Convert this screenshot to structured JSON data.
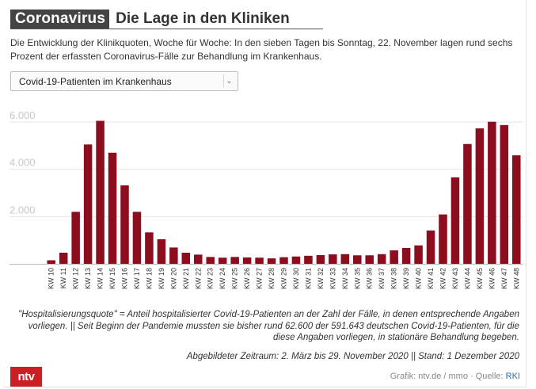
{
  "header": {
    "badge": "Coronavirus",
    "title": "Die Lage in den Kliniken",
    "subtitle": "Die Entwicklung der Klinikquoten, Woche für Woche: In den sieben Tagen bis Sonntag, 22. November lagen rund sechs Prozent der erfassten Coronavirus-Fälle zur Behandlung im Krankenhaus."
  },
  "selector": {
    "selected": "Covid-19-Patienten im Krankenhaus"
  },
  "chart_data": {
    "type": "bar",
    "categories": [
      "KW 10",
      "KW 11",
      "KW 12",
      "KW 13",
      "KW 14",
      "KW 15",
      "KW 16",
      "KW 17",
      "KW 18",
      "KW 19",
      "KW 20",
      "KW 21",
      "KW 22",
      "KW 23",
      "KW 24",
      "KW 25",
      "KW 26",
      "KW 27",
      "KW 28",
      "KW 29",
      "KW 30",
      "KW 31",
      "KW 32",
      "KW 33",
      "KW 34",
      "KW 35",
      "KW 36",
      "KW 37",
      "KW 38",
      "KW 39",
      "KW 40",
      "KW 41",
      "KW 42",
      "KW 43",
      "KW 44",
      "KW 45",
      "KW 46",
      "KW 47",
      "KW 48"
    ],
    "values": [
      150,
      470,
      2200,
      5050,
      6050,
      4700,
      3320,
      2200,
      1330,
      1040,
      690,
      470,
      390,
      290,
      260,
      290,
      270,
      260,
      230,
      280,
      310,
      340,
      370,
      400,
      410,
      360,
      360,
      410,
      570,
      670,
      780,
      1410,
      2090,
      3660,
      5070,
      5730,
      6010,
      5870,
      4590
    ],
    "yticks": [
      "2.000",
      "4.000",
      "6.000"
    ],
    "ytick_values": [
      2000,
      4000,
      6000
    ],
    "ylim": [
      0,
      6600
    ],
    "grid": true,
    "bar_color": "#8b0d1e",
    "title": "",
    "xlabel": "",
    "ylabel": ""
  },
  "notes": {
    "definition": "\"Hospitalisierungsquote\" = Anteil hospitalisierter Covid-19-Patienten an der Zahl der Fälle, in denen entsprechende Angaben vorliegen. || Seit Beginn der Pandemie mussten sie bisher rund 62.600 der 591.643 deutschen Covid-19-Patienten, für die diese Angaben vorliegen, in stationäre Behandlung begeben.",
    "period": "Abgebildeter Zeitraum: 2. März bis 29. November 2020 || Stand: 1 Dezember 2020"
  },
  "footer": {
    "logo": "ntv",
    "credit": "Grafik: ntv.de / mmo · Quelle: ",
    "source": "RKI",
    "logo_color": "#cc1f24"
  }
}
